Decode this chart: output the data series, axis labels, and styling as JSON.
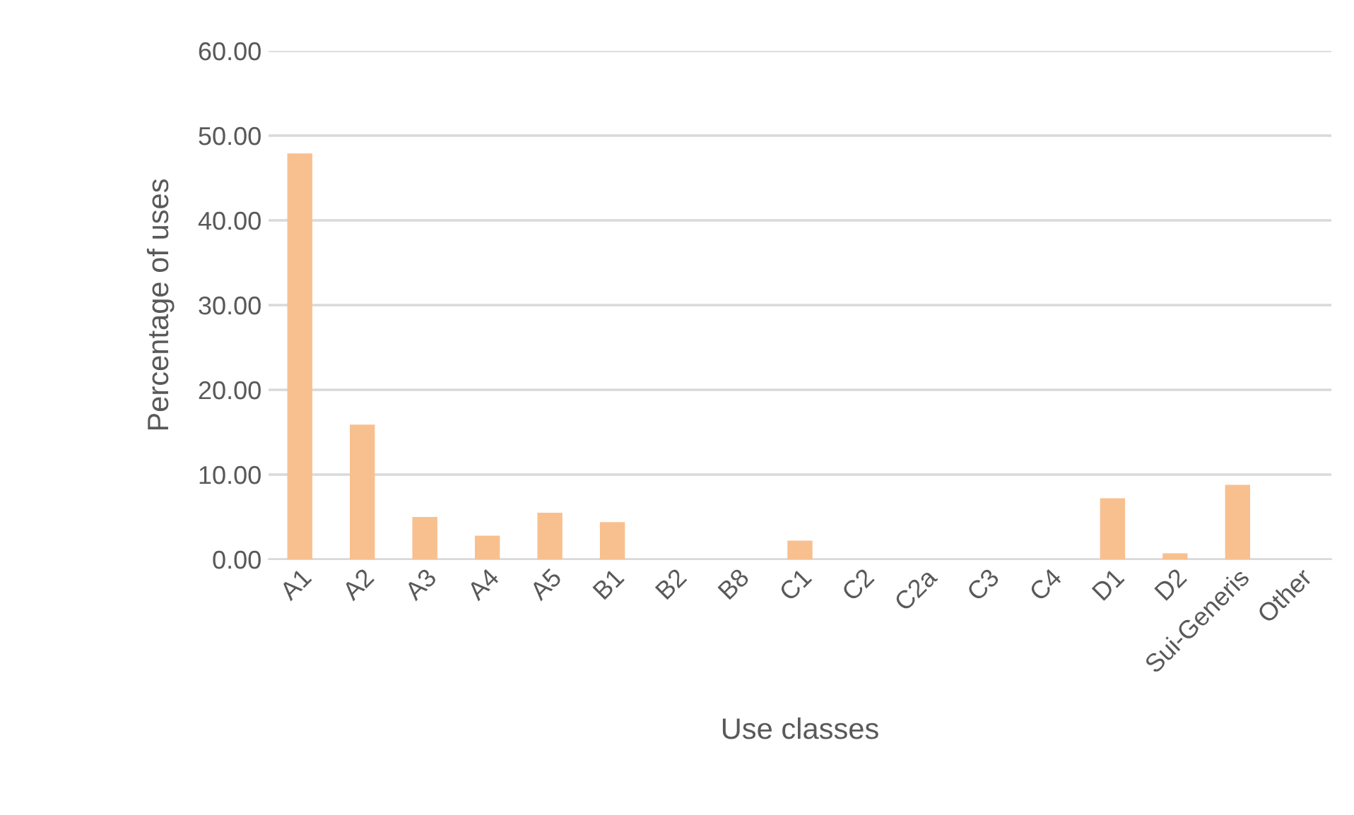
{
  "chart_data": {
    "type": "bar",
    "xlabel": "Use classes",
    "ylabel": "Percentage of uses",
    "categories": [
      "A1",
      "A2",
      "A3",
      "A4",
      "A5",
      "B1",
      "B2",
      "B8",
      "C1",
      "C2",
      "C2a",
      "C3",
      "C4",
      "D1",
      "D2",
      "Sui-Generis",
      "Other"
    ],
    "values": [
      47.9,
      15.9,
      5.0,
      2.8,
      5.5,
      4.4,
      0,
      0,
      2.2,
      0,
      0,
      0,
      0,
      7.2,
      0.7,
      8.8,
      0
    ],
    "color": "#f8c08f",
    "ylim": [
      0,
      60
    ],
    "yticks": [
      {
        "value": 0,
        "label": "0.00"
      },
      {
        "value": 10,
        "label": "10.00"
      },
      {
        "value": 20,
        "label": "20.00"
      },
      {
        "value": 30,
        "label": "30.00"
      },
      {
        "value": 40,
        "label": "40.00"
      },
      {
        "value": 50,
        "label": "50.00"
      },
      {
        "value": 60,
        "label": "60.00"
      }
    ],
    "grid": "y",
    "legend": false
  }
}
